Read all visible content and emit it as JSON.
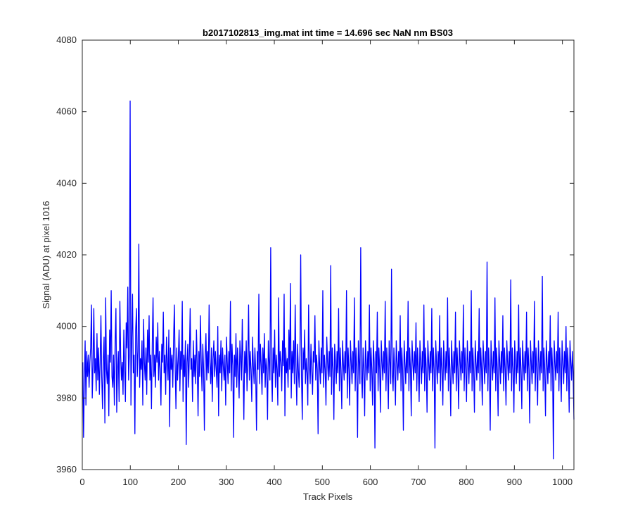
{
  "chart_data": {
    "type": "line",
    "title": "b2017102813_img.mat int time = 14.696 sec  NaN nm BS03",
    "xlabel": "Track Pixels",
    "ylabel": "Signal (ADU) at pixel 1016",
    "xlim": [
      0,
      1024
    ],
    "ylim": [
      3960,
      4080
    ],
    "xticks": [
      0,
      100,
      200,
      300,
      400,
      500,
      600,
      700,
      800,
      900,
      1000
    ],
    "yticks": [
      3960,
      3980,
      4000,
      4020,
      4040,
      4060,
      4080
    ],
    "line_color": "#0000ff",
    "grid": false,
    "series": [
      {
        "x_start": 1,
        "x_step": 1,
        "values": [
          3990,
          3969,
          3985,
          3996,
          3978,
          3993,
          3986,
          3992,
          3983,
          3990,
          3994,
          4006,
          3980,
          3989,
          4005,
          3987,
          3991,
          3982,
          3998,
          3985,
          3994,
          3981,
          3990,
          4003,
          3986,
          3977,
          3991,
          3997,
          3973,
          4008,
          3988,
          3984,
          3992,
          3975,
          3999,
          3990,
          4010,
          3986,
          3983,
          3992,
          3978,
          3996,
          4005,
          3976,
          3988,
          3993,
          3979,
          4007,
          3992,
          3985,
          3990,
          3981,
          3999,
          3989,
          3979,
          4001,
          3994,
          4011,
          3985,
          3992,
          4063,
          3978,
          3996,
          4009,
          3987,
          3992,
          3970,
          3999,
          4005,
          3986,
          3993,
          4023,
          3983,
          3991,
          3988,
          3996,
          3978,
          4002,
          3990,
          3985,
          3994,
          3981,
          3999,
          3990,
          4003,
          3985,
          3992,
          3977,
          3995,
          4008,
          3986,
          3992,
          3983,
          3997,
          3990,
          4001,
          3985,
          3993,
          3988,
          3978,
          3995,
          3990,
          4004,
          3987,
          3992,
          3981,
          3997,
          3990,
          3985,
          3999,
          3972,
          3994,
          3988,
          3992,
          3983,
          3996,
          4006,
          3989,
          3977,
          3994,
          3985,
          3991,
          3999,
          3982,
          3993,
          3988,
          4007,
          3979,
          3992,
          3986,
          3996,
          3967,
          3990,
          3995,
          3983,
          3992,
          4005,
          3988,
          3991,
          3979,
          3996,
          3986,
          3992,
          3984,
          3999,
          3989,
          3975,
          3993,
          3986,
          4003,
          3990,
          3982,
          3995,
          3988,
          3971,
          3992,
          3998,
          3985,
          3993,
          3987,
          4006,
          3990,
          3984,
          3994,
          3979,
          3991,
          3996,
          3986,
          3993,
          3988,
          3983,
          4000,
          3975,
          3992,
          3987,
          3996,
          3982,
          3994,
          3989,
          3985,
          3992,
          3978,
          3997,
          3990,
          3984,
          3993,
          3987,
          4007,
          3982,
          3995,
          3989,
          3969,
          3992,
          3986,
          3998,
          3983,
          3994,
          3988,
          3980,
          3996,
          3991,
          3985,
          4002,
          3988,
          3974,
          3993,
          3987,
          3996,
          3982,
          3990,
          4006,
          3985,
          3993,
          3988,
          3979,
          3997,
          3989,
          3984,
          3994,
          3987,
          3971,
          3993,
          3988,
          4009,
          3984,
          3995,
          3989,
          3981,
          3994,
          3987,
          3998,
          3983,
          3991,
          3988,
          3974,
          3996,
          3990,
          3985,
          4022,
          3988,
          3979,
          3994,
          3987,
          3999,
          3983,
          3992,
          3988,
          3978,
          4008,
          3986,
          3993,
          3990,
          3982,
          3996,
          3989,
          4009,
          3975,
          3994,
          3987,
          3991,
          3983,
          3999,
          3988,
          4012,
          3980,
          3993,
          3987,
          3996,
          3984,
          4006,
          3989,
          3978,
          3995,
          3988,
          3983,
          3992,
          4020,
          3986,
          3974,
          3994,
          3988,
          3999,
          3984,
          3991,
          3987,
          3978,
          4006,
          3989,
          3984,
          3995,
          3988,
          3981,
          3993,
          3990,
          4003,
          3985,
          3992,
          3988,
          3970,
          3996,
          3989,
          3984,
          3994,
          3987,
          4010,
          3983,
          3992,
          3988,
          3978,
          3997,
          3990,
          3985,
          3993,
          3986,
          4017,
          3981,
          3994,
          3988,
          3974,
          3995,
          3990,
          3984,
          3993,
          3987,
          4005,
          3982,
          3994,
          3988,
          3977,
          3996,
          3990,
          3985,
          3993,
          3987,
          4010,
          3980,
          3994,
          3988,
          3978,
          3996,
          3990,
          3984,
          3993,
          3987,
          4008,
          3982,
          3994,
          3988,
          3969,
          3996,
          3990,
          3984,
          4022,
          3987,
          3980,
          3994,
          3988,
          3975,
          3996,
          3990,
          3985,
          3993,
          3987,
          4006,
          3982,
          3994,
          3988,
          3978,
          3996,
          3990,
          3966,
          3993,
          3987,
          4004,
          3982,
          3994,
          3988,
          3976,
          3996,
          3990,
          3985,
          3993,
          3987,
          4007,
          3982,
          3994,
          3988,
          3977,
          3996,
          3990,
          3984,
          4016,
          3987,
          3982,
          3994,
          3988,
          3978,
          3996,
          3990,
          3985,
          3993,
          3987,
          4003,
          3982,
          3994,
          3988,
          3971,
          3996,
          3990,
          3984,
          3993,
          3987,
          4007,
          3982,
          3994,
          3988,
          3975,
          3996,
          3990,
          3985,
          3993,
          3987,
          4001,
          3982,
          3994,
          3988,
          3979,
          3996,
          3990,
          3984,
          3993,
          3987,
          4006,
          3982,
          3994,
          3988,
          3976,
          3996,
          3990,
          3985,
          3993,
          3987,
          4005,
          3982,
          3994,
          3988,
          3966,
          3996,
          3990,
          3984,
          3993,
          3987,
          4003,
          3982,
          3994,
          3988,
          3978,
          3996,
          3990,
          3985,
          3993,
          3987,
          4008,
          3982,
          3994,
          3988,
          3975,
          3996,
          3990,
          3984,
          3993,
          3987,
          4004,
          3982,
          3994,
          3988,
          3977,
          3996,
          3990,
          3985,
          3993,
          3987,
          4006,
          3982,
          3994,
          3988,
          3979,
          3996,
          3990,
          3984,
          3993,
          3987,
          4010,
          3982,
          3994,
          3988,
          3976,
          3996,
          3990,
          3985,
          3993,
          3987,
          4005,
          3982,
          3994,
          3988,
          3978,
          3996,
          3990,
          3984,
          3993,
          3987,
          4018,
          3982,
          3994,
          3988,
          3971,
          3996,
          3990,
          3985,
          3993,
          3987,
          4008,
          3982,
          3994,
          3988,
          3975,
          3996,
          3990,
          3984,
          3993,
          3987,
          4003,
          3982,
          3994,
          3988,
          3978,
          3996,
          3990,
          3985,
          3993,
          3987,
          4013,
          3982,
          3994,
          3988,
          3976,
          3996,
          3990,
          3984,
          3993,
          3987,
          4006,
          3982,
          3994,
          3988,
          3977,
          3996,
          3990,
          3985,
          3993,
          3987,
          4004,
          3982,
          3994,
          3988,
          3973,
          3996,
          3990,
          3984,
          3993,
          3987,
          4007,
          3982,
          3994,
          3988,
          3978,
          3996,
          3990,
          3985,
          3993,
          3987,
          4014,
          3982,
          3994,
          3988,
          3975,
          3996,
          3990,
          3984,
          3993,
          3987,
          4003,
          3982,
          3994,
          3988,
          3963,
          3996,
          3990,
          3985,
          3993,
          3987,
          4004,
          3982,
          3994,
          3988,
          3979,
          3996,
          3990,
          3984,
          3993,
          3987,
          4000,
          3982,
          3994,
          3988,
          3976,
          3996,
          3990,
          3985,
          3993,
          3987,
          3974
        ]
      }
    ]
  }
}
